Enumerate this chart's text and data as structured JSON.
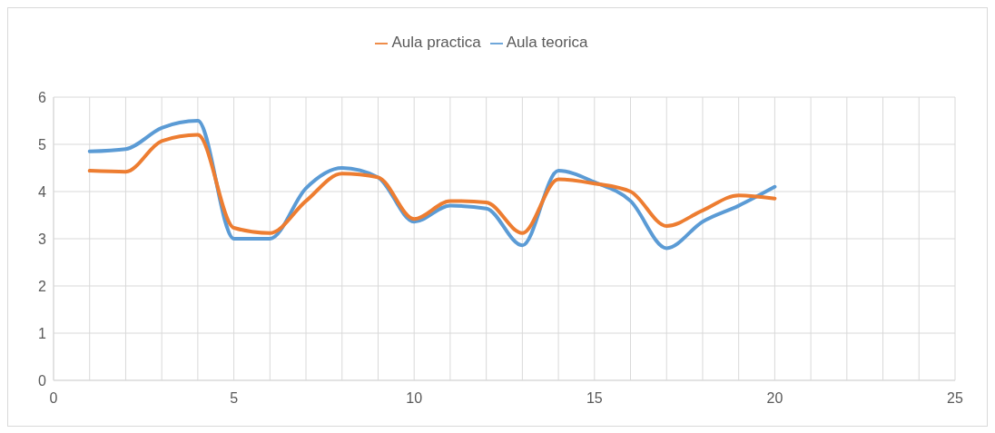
{
  "chart_data": {
    "type": "line",
    "x": [
      1,
      2,
      3,
      4,
      5,
      6,
      7,
      8,
      9,
      10,
      11,
      12,
      13,
      14,
      15,
      16,
      17,
      18,
      19,
      20
    ],
    "series": [
      {
        "name": "Aula teorica",
        "color": "#5b9bd5",
        "values": [
          4.85,
          4.9,
          5.35,
          5.5,
          3.0,
          3.0,
          4.07,
          4.5,
          4.3,
          3.36,
          3.7,
          3.64,
          2.86,
          4.44,
          4.2,
          3.8,
          2.8,
          3.36,
          3.7,
          4.1
        ]
      },
      {
        "name": "Aula practica",
        "color": "#ed7d31",
        "values": [
          4.44,
          4.42,
          5.07,
          5.2,
          3.23,
          3.12,
          3.8,
          4.38,
          4.3,
          3.42,
          3.8,
          3.77,
          3.12,
          4.26,
          4.17,
          4.0,
          3.27,
          3.6,
          3.92,
          3.85
        ]
      }
    ],
    "xlim": [
      0,
      25
    ],
    "xticks": [
      0,
      {
        "value": 1,
        "label": null
      },
      {
        "value": 2,
        "label": null
      },
      {
        "value": 3,
        "label": null
      },
      {
        "value": 4,
        "label": null
      },
      5,
      {
        "value": 6,
        "label": null
      },
      {
        "value": 7,
        "label": null
      },
      {
        "value": 8,
        "label": null
      },
      {
        "value": 9,
        "label": null
      },
      10,
      {
        "value": 11,
        "label": null
      },
      {
        "value": 12,
        "label": null
      },
      {
        "value": 13,
        "label": null
      },
      {
        "value": 14,
        "label": null
      },
      15,
      {
        "value": 16,
        "label": null
      },
      {
        "value": 17,
        "label": null
      },
      {
        "value": 18,
        "label": null
      },
      {
        "value": 19,
        "label": null
      },
      20,
      {
        "value": 21,
        "label": null
      },
      {
        "value": 22,
        "label": null
      },
      {
        "value": 23,
        "label": null
      },
      {
        "value": 24,
        "label": null
      },
      25
    ],
    "ylim": [
      0,
      6
    ],
    "yticks": [
      0,
      1,
      2,
      3,
      4,
      5,
      6
    ],
    "grid": true,
    "legend": "top",
    "marker": "none",
    "line_style": "solid"
  }
}
